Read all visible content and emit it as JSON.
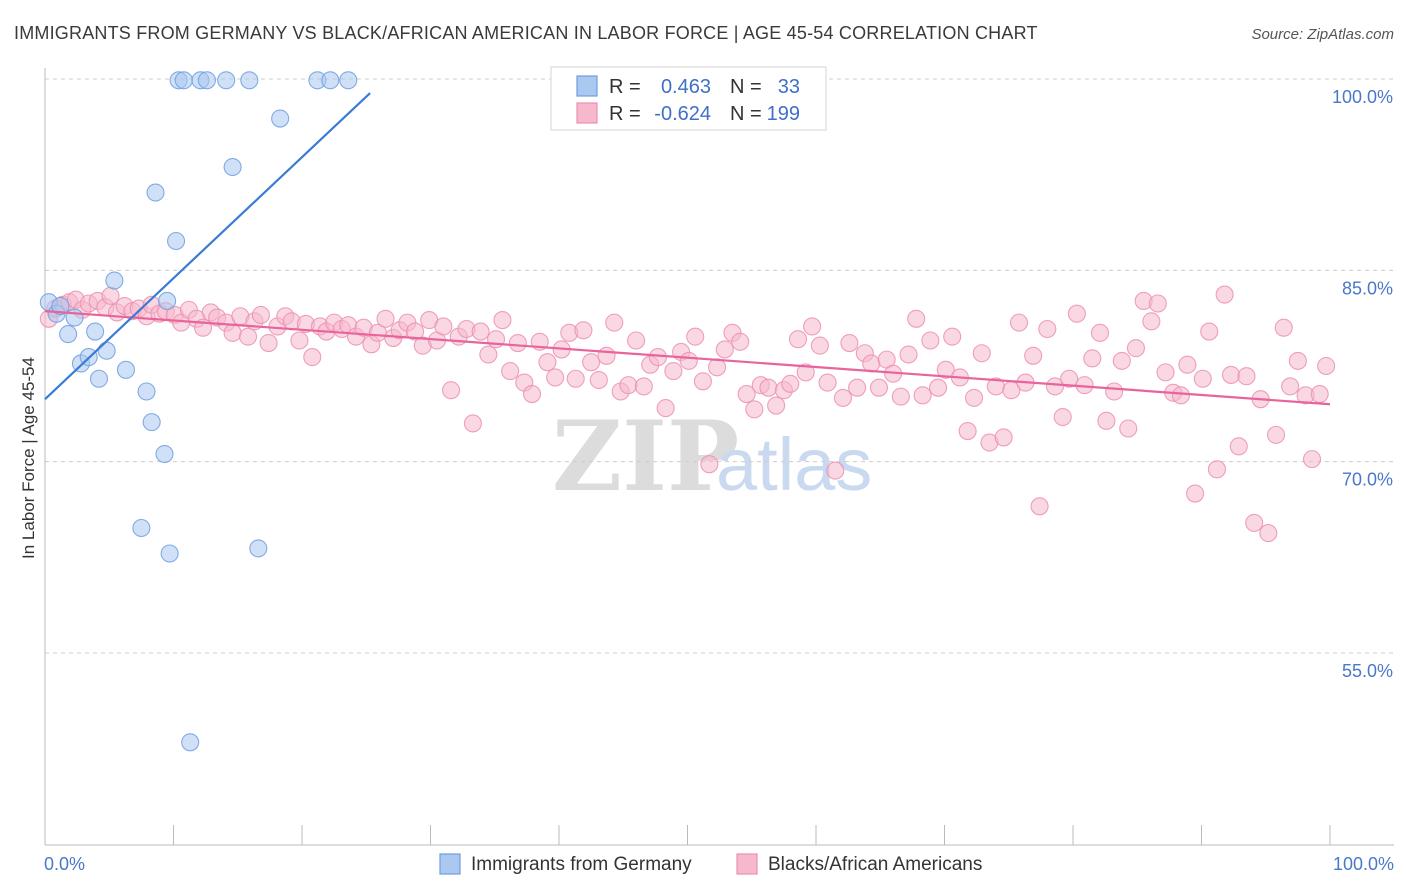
{
  "title": "IMMIGRANTS FROM GERMANY VS BLACK/AFRICAN AMERICAN IN LABOR FORCE | AGE 45-54 CORRELATION CHART",
  "source": "Source: ZipAtlas.com",
  "watermark": {
    "zip": "ZIP",
    "atlas": "atlas"
  },
  "legend": {
    "r_label": "R =",
    "n_label": "N =",
    "blue": {
      "r": "0.463",
      "n": "33"
    },
    "pink": {
      "r": "-0.624",
      "n": "199"
    }
  },
  "colors": {
    "blue_fill": "#aac8f0",
    "blue_stroke": "#6f9ee0",
    "blue_line": "#3a7bd5",
    "pink_fill": "#f5b8cc",
    "pink_stroke": "#ec8fb0",
    "pink_line": "#e8649a",
    "grid": "#cccccc",
    "axis_label": "#4a78c8"
  },
  "chart_data": {
    "type": "scatter",
    "title": "IMMIGRANTS FROM GERMANY VS BLACK/AFRICAN AMERICAN IN LABOR FORCE | AGE 45-54 CORRELATION CHART",
    "xlabel": "",
    "ylabel": "In Labor Force | Age 45-54",
    "xlim": [
      0,
      100
    ],
    "ylim": [
      40,
      102.5
    ],
    "x_tick_labels": [
      "0.0%",
      "100.0%"
    ],
    "y_ticks": [
      55,
      70,
      85,
      100
    ],
    "y_tick_labels": [
      "55.0%",
      "70.0%",
      "85.0%",
      "100.0%"
    ],
    "grid": "horizontal dashed",
    "legend_position": "top-center",
    "series": [
      {
        "name": "Immigrants from Germany",
        "color": "#aac8f0",
        "trend": {
          "x": [
            0,
            25.3
          ],
          "y": [
            74.9,
            98.9
          ]
        },
        "points": [
          [
            0.3,
            82.5
          ],
          [
            0.9,
            81.6
          ],
          [
            1.2,
            82.2
          ],
          [
            1.8,
            80.0
          ],
          [
            2.3,
            81.3
          ],
          [
            2.8,
            77.7
          ],
          [
            3.4,
            78.2
          ],
          [
            3.9,
            80.2
          ],
          [
            4.2,
            76.5
          ],
          [
            4.8,
            78.7
          ],
          [
            5.4,
            84.2
          ],
          [
            6.3,
            77.2
          ],
          [
            7.5,
            64.8
          ],
          [
            7.9,
            75.5
          ],
          [
            8.3,
            73.1
          ],
          [
            8.6,
            91.1
          ],
          [
            9.3,
            70.6
          ],
          [
            9.5,
            82.6
          ],
          [
            9.7,
            62.8
          ],
          [
            10.2,
            87.3
          ],
          [
            10.4,
            99.9
          ],
          [
            10.8,
            99.9
          ],
          [
            11.3,
            48.0
          ],
          [
            12.1,
            99.9
          ],
          [
            12.6,
            99.9
          ],
          [
            14.1,
            99.9
          ],
          [
            14.6,
            93.1
          ],
          [
            15.9,
            99.9
          ],
          [
            16.6,
            63.2
          ],
          [
            18.3,
            96.9
          ],
          [
            21.2,
            99.9
          ],
          [
            22.2,
            99.9
          ],
          [
            23.6,
            99.9
          ]
        ]
      },
      {
        "name": "Blacks/African Americans",
        "color": "#f5b8cc",
        "trend": {
          "x": [
            0,
            100
          ],
          "y": [
            81.8,
            74.5
          ]
        },
        "points": [
          [
            0.3,
            81.2
          ],
          [
            0.8,
            82.0
          ],
          [
            1.4,
            82.3
          ],
          [
            1.9,
            82.5
          ],
          [
            2.4,
            82.7
          ],
          [
            2.9,
            81.9
          ],
          [
            3.4,
            82.4
          ],
          [
            4.1,
            82.6
          ],
          [
            4.7,
            82.1
          ],
          [
            5.1,
            83.0
          ],
          [
            5.6,
            81.7
          ],
          [
            6.2,
            82.2
          ],
          [
            6.8,
            81.8
          ],
          [
            7.3,
            82.0
          ],
          [
            7.9,
            81.4
          ],
          [
            8.3,
            82.3
          ],
          [
            8.9,
            81.6
          ],
          [
            9.4,
            81.8
          ],
          [
            10.1,
            81.5
          ],
          [
            10.6,
            80.9
          ],
          [
            11.2,
            81.9
          ],
          [
            11.8,
            81.2
          ],
          [
            12.3,
            80.5
          ],
          [
            12.9,
            81.7
          ],
          [
            13.4,
            81.3
          ],
          [
            14.1,
            80.9
          ],
          [
            14.6,
            80.1
          ],
          [
            15.2,
            81.4
          ],
          [
            15.8,
            79.8
          ],
          [
            16.3,
            81.0
          ],
          [
            16.8,
            81.5
          ],
          [
            17.4,
            79.3
          ],
          [
            18.1,
            80.6
          ],
          [
            18.7,
            81.4
          ],
          [
            19.2,
            81.0
          ],
          [
            19.8,
            79.5
          ],
          [
            20.3,
            80.8
          ],
          [
            20.8,
            78.2
          ],
          [
            21.4,
            80.6
          ],
          [
            21.9,
            80.2
          ],
          [
            22.5,
            80.9
          ],
          [
            23.1,
            80.4
          ],
          [
            23.6,
            80.7
          ],
          [
            24.2,
            79.8
          ],
          [
            24.8,
            80.5
          ],
          [
            25.4,
            79.2
          ],
          [
            25.9,
            80.1
          ],
          [
            26.5,
            81.2
          ],
          [
            27.1,
            79.7
          ],
          [
            27.6,
            80.3
          ],
          [
            28.2,
            80.9
          ],
          [
            28.8,
            80.2
          ],
          [
            29.4,
            79.1
          ],
          [
            29.9,
            81.1
          ],
          [
            30.5,
            79.5
          ],
          [
            31.0,
            80.6
          ],
          [
            31.6,
            75.6
          ],
          [
            32.2,
            79.8
          ],
          [
            32.8,
            80.4
          ],
          [
            33.3,
            73.0
          ],
          [
            33.9,
            80.2
          ],
          [
            34.5,
            78.4
          ],
          [
            35.1,
            79.6
          ],
          [
            35.6,
            81.1
          ],
          [
            36.2,
            77.1
          ],
          [
            36.8,
            79.3
          ],
          [
            37.3,
            76.2
          ],
          [
            37.9,
            75.3
          ],
          [
            38.5,
            79.4
          ],
          [
            39.1,
            77.8
          ],
          [
            39.7,
            76.6
          ],
          [
            40.2,
            78.8
          ],
          [
            40.8,
            80.1
          ],
          [
            41.3,
            76.5
          ],
          [
            41.9,
            80.3
          ],
          [
            42.5,
            77.8
          ],
          [
            43.1,
            76.4
          ],
          [
            43.7,
            78.3
          ],
          [
            44.3,
            80.9
          ],
          [
            44.8,
            75.5
          ],
          [
            45.4,
            76.0
          ],
          [
            46.0,
            79.5
          ],
          [
            46.6,
            75.9
          ],
          [
            47.1,
            77.6
          ],
          [
            47.7,
            78.2
          ],
          [
            48.3,
            74.2
          ],
          [
            48.9,
            77.1
          ],
          [
            49.5,
            78.6
          ],
          [
            50.1,
            77.9
          ],
          [
            50.6,
            79.8
          ],
          [
            51.2,
            76.3
          ],
          [
            51.7,
            69.8
          ],
          [
            52.3,
            77.4
          ],
          [
            52.9,
            78.8
          ],
          [
            53.5,
            80.1
          ],
          [
            54.1,
            79.4
          ],
          [
            54.6,
            75.3
          ],
          [
            55.2,
            74.1
          ],
          [
            55.7,
            76.0
          ],
          [
            56.3,
            75.8
          ],
          [
            56.9,
            74.4
          ],
          [
            57.5,
            75.6
          ],
          [
            58.0,
            76.1
          ],
          [
            58.6,
            79.6
          ],
          [
            59.2,
            77.0
          ],
          [
            59.7,
            80.6
          ],
          [
            60.3,
            79.1
          ],
          [
            60.9,
            76.2
          ],
          [
            61.5,
            69.3
          ],
          [
            62.1,
            75.0
          ],
          [
            62.6,
            79.3
          ],
          [
            63.2,
            75.8
          ],
          [
            63.8,
            78.5
          ],
          [
            64.3,
            77.7
          ],
          [
            64.9,
            75.8
          ],
          [
            65.5,
            78.0
          ],
          [
            66.0,
            76.9
          ],
          [
            66.6,
            75.1
          ],
          [
            67.2,
            78.4
          ],
          [
            67.8,
            81.2
          ],
          [
            68.3,
            75.2
          ],
          [
            68.9,
            79.5
          ],
          [
            69.5,
            75.8
          ],
          [
            70.1,
            77.2
          ],
          [
            70.6,
            79.8
          ],
          [
            71.2,
            76.6
          ],
          [
            71.8,
            72.4
          ],
          [
            72.3,
            75.0
          ],
          [
            72.9,
            78.5
          ],
          [
            73.5,
            71.5
          ],
          [
            74.0,
            75.9
          ],
          [
            74.6,
            71.9
          ],
          [
            75.2,
            75.6
          ],
          [
            75.8,
            80.9
          ],
          [
            76.3,
            76.2
          ],
          [
            76.9,
            78.3
          ],
          [
            77.4,
            66.5
          ],
          [
            78.0,
            80.4
          ],
          [
            78.6,
            75.9
          ],
          [
            79.2,
            73.5
          ],
          [
            79.7,
            76.5
          ],
          [
            80.3,
            81.6
          ],
          [
            80.9,
            76.0
          ],
          [
            81.5,
            78.1
          ],
          [
            82.1,
            80.1
          ],
          [
            82.6,
            73.2
          ],
          [
            83.2,
            75.5
          ],
          [
            83.8,
            77.9
          ],
          [
            84.3,
            72.6
          ],
          [
            84.9,
            78.9
          ],
          [
            85.5,
            82.6
          ],
          [
            86.1,
            81.0
          ],
          [
            86.6,
            82.4
          ],
          [
            87.2,
            77.0
          ],
          [
            87.8,
            75.4
          ],
          [
            88.4,
            75.2
          ],
          [
            88.9,
            77.6
          ],
          [
            89.5,
            67.5
          ],
          [
            90.1,
            76.5
          ],
          [
            90.6,
            80.2
          ],
          [
            91.2,
            69.4
          ],
          [
            91.8,
            83.1
          ],
          [
            92.3,
            76.8
          ],
          [
            92.9,
            71.2
          ],
          [
            93.5,
            76.7
          ],
          [
            94.1,
            65.2
          ],
          [
            94.6,
            74.9
          ],
          [
            95.2,
            64.4
          ],
          [
            95.8,
            72.1
          ],
          [
            96.4,
            80.5
          ],
          [
            96.9,
            75.9
          ],
          [
            97.5,
            77.9
          ],
          [
            98.1,
            75.2
          ],
          [
            98.6,
            70.2
          ],
          [
            99.2,
            75.3
          ],
          [
            99.7,
            77.5
          ]
        ]
      }
    ]
  },
  "bottom_legend": [
    {
      "label": "Immigrants from Germany"
    },
    {
      "label": "Blacks/African Americans"
    }
  ]
}
